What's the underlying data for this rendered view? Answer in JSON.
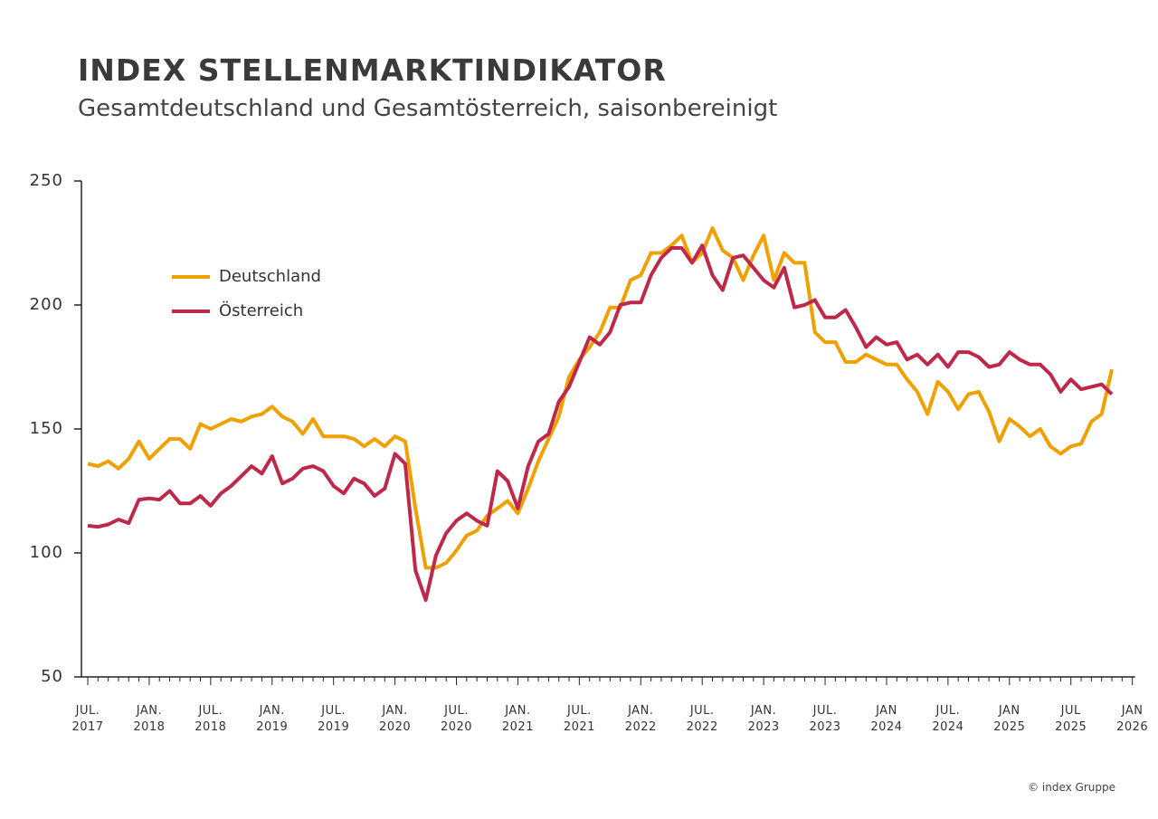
{
  "chart_data": {
    "type": "line",
    "title": "INDEX STELLENMARKTINDIKATOR",
    "subtitle": "Gesamtdeutschland und Gesamtösterreich, saisonbereinigt",
    "source": "© index Gruppe",
    "legend": "upper left",
    "categories": [
      "JUL. 2017",
      null,
      null,
      null,
      null,
      null,
      "JAN. 2018",
      null,
      null,
      null,
      null,
      null,
      "JUL. 2018",
      null,
      null,
      null,
      null,
      null,
      "JAN. 2019",
      null,
      null,
      null,
      null,
      null,
      "JUL. 2019",
      null,
      null,
      null,
      null,
      null,
      "JAN. 2020",
      null,
      null,
      null,
      null,
      null,
      "JUL. 2020",
      null,
      null,
      null,
      null,
      null,
      "JAN. 2021",
      null,
      null,
      null,
      null,
      null,
      "JUL. 2021",
      null,
      null,
      null,
      null,
      null,
      "JAN. 2022",
      null,
      null,
      null,
      null,
      null,
      "JUL. 2022",
      null,
      null,
      null,
      null,
      null,
      "JAN. 2023",
      null,
      null,
      null,
      null,
      null,
      "JUL. 2023",
      null,
      null,
      null,
      null,
      null,
      "JAN 2024",
      null,
      null,
      null,
      null,
      null,
      "JUL. 2024",
      null,
      null,
      null,
      null,
      null,
      "JAN 2025",
      null,
      null,
      null,
      null,
      null,
      "JUL 2025",
      null,
      null,
      null,
      null,
      null,
      "JAN 2026"
    ],
    "series": [
      {
        "name": "Deutschland",
        "color": "#f0a000",
        "values": [
          136,
          135,
          137,
          134,
          138,
          145,
          138,
          142,
          146,
          146,
          142,
          152,
          150,
          152,
          154,
          153,
          155,
          156,
          159,
          155,
          153,
          148,
          154,
          147,
          147,
          147,
          146,
          143,
          146,
          143,
          147,
          145,
          118,
          94,
          94,
          96,
          101,
          107,
          109,
          115,
          118,
          121,
          116,
          126,
          137,
          146,
          155,
          171,
          178,
          183,
          189,
          199,
          199,
          210,
          212,
          221,
          221,
          224,
          228,
          217,
          221,
          231,
          222,
          219,
          210,
          220,
          228,
          210,
          221,
          217,
          217,
          189,
          185,
          185,
          177,
          177,
          180,
          178,
          176,
          176,
          170,
          165,
          156,
          169,
          165,
          158,
          164,
          165,
          157,
          145,
          154,
          151,
          147,
          150,
          143,
          140,
          143,
          144,
          153,
          156,
          174,
          null,
          null
        ]
      },
      {
        "name": "Österreich",
        "color": "#c0284a",
        "values": [
          111,
          110.5,
          111.5,
          113.5,
          112,
          121.5,
          122,
          121.5,
          125,
          120,
          120,
          123,
          119,
          124,
          127,
          131,
          135,
          132,
          139,
          128,
          130,
          134,
          135,
          133,
          127,
          124,
          130,
          128,
          123,
          126,
          140,
          136,
          93,
          81,
          99,
          108,
          113,
          116,
          113,
          111,
          133,
          129,
          118,
          135,
          145,
          148,
          161,
          167,
          177,
          187,
          184,
          189,
          200,
          201,
          201,
          212,
          219,
          223,
          223,
          217,
          224,
          212,
          206,
          219,
          220,
          215,
          210,
          207,
          215,
          199,
          200,
          202,
          195,
          195,
          198,
          191,
          183,
          187,
          184,
          185,
          178,
          180,
          176,
          180,
          175,
          181,
          181,
          179,
          175,
          176,
          181,
          178,
          176,
          176,
          172,
          165,
          170,
          166,
          167,
          168,
          164,
          null,
          null
        ]
      }
    ],
    "ylim": [
      50,
      250
    ],
    "yticks": [
      50,
      100,
      150,
      200,
      250
    ]
  }
}
